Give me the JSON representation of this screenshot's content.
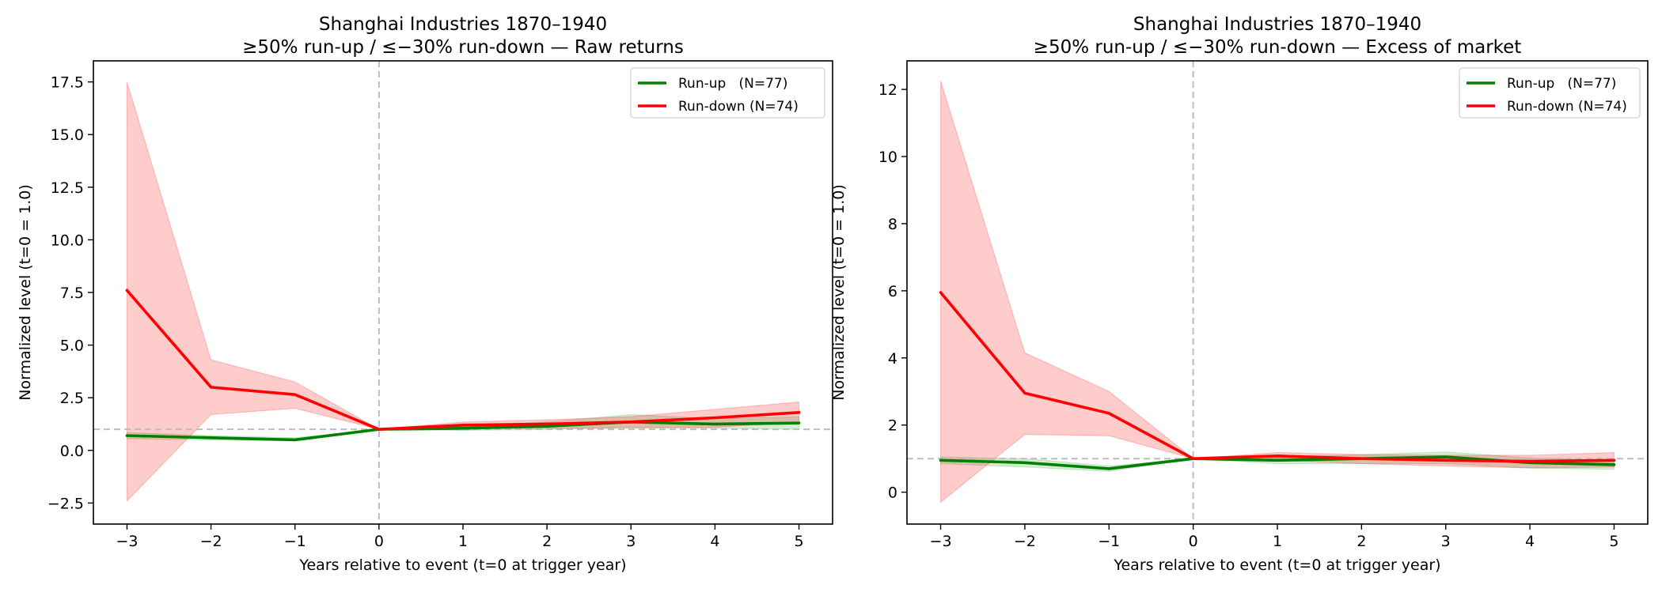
{
  "chart_data": [
    {
      "type": "line",
      "title": "Shanghai Industries 1870–1940",
      "subtitle": "≥50% run-up / ≤−30% run-down — Raw returns",
      "xlabel": "Years relative to event (t=0 at trigger year)",
      "ylabel": "Normalized level (t=0 = 1.0)",
      "x": [
        -3,
        -2,
        -1,
        0,
        1,
        2,
        3,
        4,
        5
      ],
      "xticks": [
        -3,
        -2,
        -1,
        0,
        1,
        2,
        3,
        4,
        5
      ],
      "xtick_labels": [
        "−3",
        "−2",
        "−1",
        "0",
        "1",
        "2",
        "3",
        "4",
        "5"
      ],
      "xlim": [
        -3.4,
        5.4
      ],
      "yticks": [
        -2.5,
        0.0,
        2.5,
        5.0,
        7.5,
        10.0,
        12.5,
        15.0,
        17.5
      ],
      "ytick_labels": [
        "−2.5",
        "0.0",
        "2.5",
        "5.0",
        "7.5",
        "10.0",
        "12.5",
        "15.0",
        "17.5"
      ],
      "ylim": [
        -3.5,
        18.5
      ],
      "grid": false,
      "legend_position": "top-right",
      "reference_lines": {
        "horizontal_y": 1.0,
        "vertical_x": 0
      },
      "series": [
        {
          "name": "Run-up   (N=77)",
          "color": "#008000",
          "band_color": "#2ca02c",
          "values": [
            0.7,
            0.6,
            0.5,
            1.0,
            1.05,
            1.15,
            1.35,
            1.25,
            1.3
          ],
          "band_lower": [
            0.55,
            0.5,
            0.45,
            1.0,
            0.95,
            1.0,
            1.1,
            1.05,
            1.0
          ],
          "band_upper": [
            0.85,
            0.7,
            0.6,
            1.0,
            1.15,
            1.35,
            1.7,
            1.5,
            1.6
          ]
        },
        {
          "name": "Run-down (N=74)",
          "color": "#ff0000",
          "band_color": "#ff0000",
          "values": [
            7.6,
            3.0,
            2.65,
            1.0,
            1.2,
            1.25,
            1.35,
            1.55,
            1.8
          ],
          "band_lower": [
            -2.4,
            1.7,
            2.0,
            1.0,
            1.05,
            1.05,
            1.05,
            1.1,
            1.35
          ],
          "band_upper": [
            17.5,
            4.3,
            3.25,
            1.0,
            1.35,
            1.45,
            1.6,
            1.95,
            2.3
          ]
        }
      ]
    },
    {
      "type": "line",
      "title": "Shanghai Industries 1870–1940",
      "subtitle": "≥50% run-up / ≤−30% run-down — Excess of market",
      "xlabel": "Years relative to event (t=0 at trigger year)",
      "ylabel": "Normalized level (t=0 = 1.0)",
      "x": [
        -3,
        -2,
        -1,
        0,
        1,
        2,
        3,
        4,
        5
      ],
      "xticks": [
        -3,
        -2,
        -1,
        0,
        1,
        2,
        3,
        4,
        5
      ],
      "xtick_labels": [
        "−3",
        "−2",
        "−1",
        "0",
        "1",
        "2",
        "3",
        "4",
        "5"
      ],
      "xlim": [
        -3.4,
        5.4
      ],
      "yticks": [
        0,
        2,
        4,
        6,
        8,
        10,
        12
      ],
      "ytick_labels": [
        "0",
        "2",
        "4",
        "6",
        "8",
        "10",
        "12"
      ],
      "ylim": [
        -0.95,
        12.85
      ],
      "grid": false,
      "legend_position": "top-right",
      "reference_lines": {
        "horizontal_y": 1.0,
        "vertical_x": 0
      },
      "series": [
        {
          "name": "Run-up   (N=77)",
          "color": "#008000",
          "band_color": "#2ca02c",
          "values": [
            0.95,
            0.88,
            0.7,
            1.0,
            0.95,
            1.0,
            1.05,
            0.88,
            0.82
          ],
          "band_lower": [
            0.85,
            0.75,
            0.62,
            1.0,
            0.85,
            0.85,
            0.85,
            0.72,
            0.68
          ],
          "band_upper": [
            1.05,
            1.0,
            0.78,
            1.0,
            1.05,
            1.12,
            1.2,
            1.02,
            0.95
          ]
        },
        {
          "name": "Run-down (N=74)",
          "color": "#ff0000",
          "band_color": "#ff0000",
          "values": [
            5.95,
            2.95,
            2.35,
            1.0,
            1.08,
            1.0,
            0.95,
            0.92,
            0.95
          ],
          "band_lower": [
            -0.3,
            1.72,
            1.68,
            1.0,
            0.95,
            0.85,
            0.78,
            0.72,
            0.75
          ],
          "band_upper": [
            12.25,
            4.15,
            3.0,
            1.0,
            1.18,
            1.12,
            1.1,
            1.1,
            1.18
          ]
        }
      ]
    }
  ]
}
